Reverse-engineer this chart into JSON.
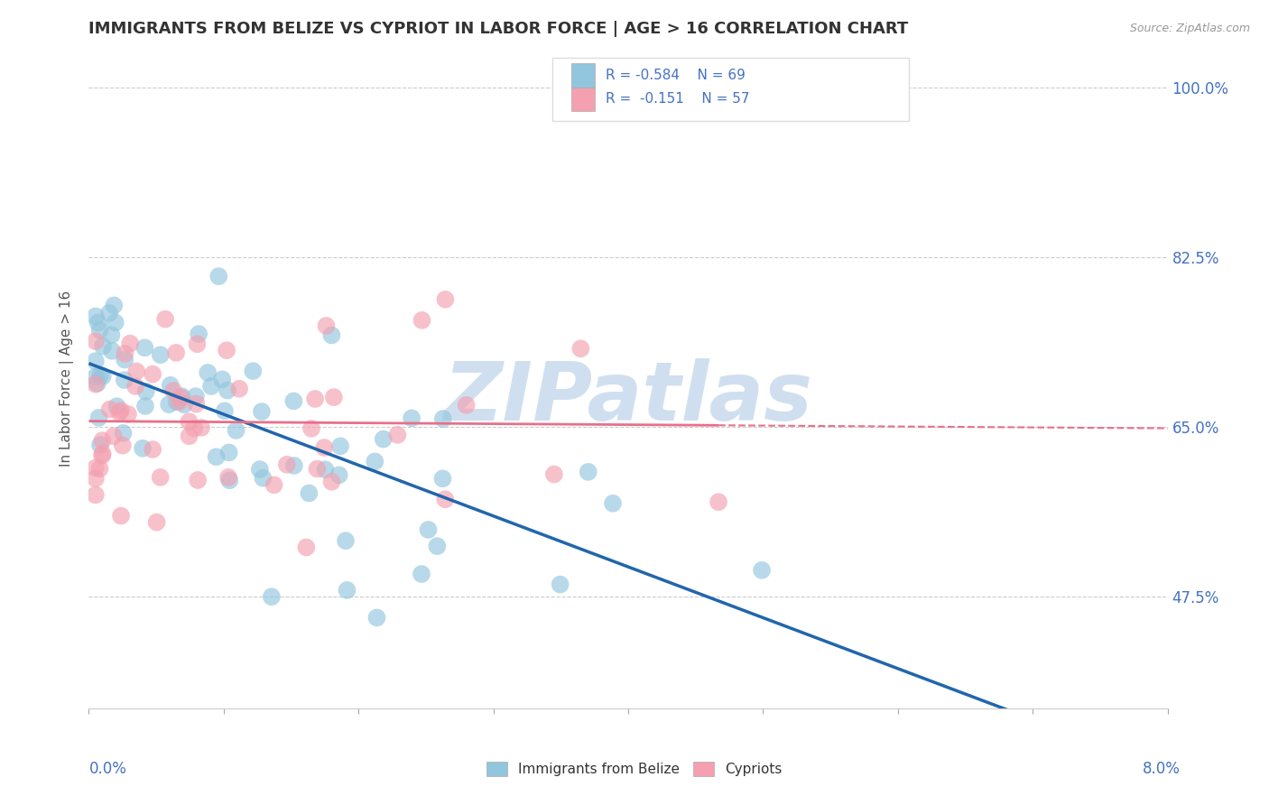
{
  "title": "IMMIGRANTS FROM BELIZE VS CYPRIOT IN LABOR FORCE | AGE > 16 CORRELATION CHART",
  "source_text": "Source: ZipAtlas.com",
  "ylabel": "In Labor Force | Age > 16",
  "xlim": [
    0.0,
    0.08
  ],
  "ylim": [
    0.36,
    1.04
  ],
  "ytick_positions": [
    0.475,
    0.65,
    0.825,
    1.0
  ],
  "ytick_labels": [
    "47.5%",
    "65.0%",
    "82.5%",
    "100.0%"
  ],
  "belize_R": -0.584,
  "belize_N": 69,
  "cypriot_R": -0.151,
  "cypriot_N": 57,
  "belize_color": "#92c5de",
  "cypriot_color": "#f4a0b0",
  "belize_line_color": "#2166ac",
  "cypriot_line_color": "#e8708a",
  "watermark": "ZIPatlas",
  "watermark_color": "#d0dff0",
  "legend_label_belize": "Immigrants from Belize",
  "legend_label_cypriot": "Cypriots",
  "grid_color": "#cccccc",
  "bg_color": "#ffffff",
  "right_ytick_color": "#4472c4",
  "title_color": "#333333",
  "source_color": "#999999"
}
